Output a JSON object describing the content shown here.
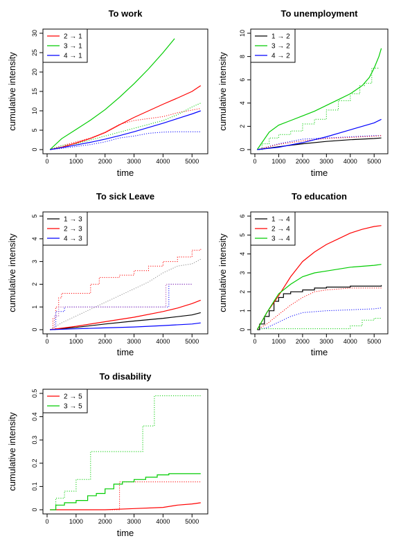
{
  "chart_data": [
    {
      "type": "line",
      "title": "To work",
      "xlabel": "time",
      "ylabel": "cumulative intensity",
      "xlim": [
        0,
        5400
      ],
      "ylim": [
        0,
        30
      ],
      "x_ticks": [
        0,
        1000,
        2000,
        3000,
        4000,
        5000
      ],
      "y_ticks": [
        0,
        5,
        10,
        15,
        20,
        25,
        30
      ],
      "legend_position": "top-left",
      "series": [
        {
          "name": "2 → 1",
          "color": "#ff0000",
          "style": "solid",
          "step": false,
          "x": [
            100,
            500,
            1000,
            1500,
            2000,
            2500,
            3000,
            3500,
            4000,
            4500,
            5000,
            5300
          ],
          "y": [
            0,
            0.6,
            1.7,
            2.9,
            4.4,
            6.4,
            8.3,
            10.0,
            11.7,
            13.3,
            15.0,
            16.5
          ]
        },
        {
          "name": "3 → 1",
          "color": "#00cc00",
          "style": "solid",
          "step": false,
          "x": [
            100,
            500,
            1000,
            1500,
            2000,
            2500,
            3000,
            3500,
            4000,
            4400
          ],
          "y": [
            0,
            2.8,
            5.2,
            7.6,
            10.3,
            13.5,
            17.0,
            20.8,
            25.0,
            28.6
          ]
        },
        {
          "name": "4 → 1",
          "color": "#0000ff",
          "style": "solid",
          "step": false,
          "x": [
            100,
            500,
            1000,
            1500,
            2000,
            2500,
            3000,
            3500,
            4000,
            4500,
            5000,
            5300
          ],
          "y": [
            0,
            0.5,
            1.2,
            1.9,
            2.7,
            3.6,
            4.6,
            5.7,
            6.8,
            8.0,
            9.2,
            10.0
          ]
        },
        {
          "name": "",
          "color": "#ff0000",
          "style": "dotted",
          "step": false,
          "x": [
            100,
            500,
            1000,
            1500,
            2000,
            2500,
            3000,
            3500,
            4000,
            4500,
            5000,
            5300
          ],
          "y": [
            0,
            1.0,
            2.0,
            3.0,
            4.5,
            6.5,
            7.5,
            8.0,
            8.5,
            9.5,
            10.2,
            10.6
          ]
        },
        {
          "name": "",
          "color": "#00cc00",
          "style": "dotted",
          "step": false,
          "x": [
            100,
            500,
            1000,
            1500,
            2000,
            2500,
            3000,
            3500,
            4000,
            4500,
            5000,
            5300
          ],
          "y": [
            0,
            1.0,
            1.5,
            2.5,
            3.5,
            4.5,
            5.5,
            6.5,
            7.5,
            9.0,
            11.0,
            12.0
          ]
        },
        {
          "name": "",
          "color": "#0000ff",
          "style": "dotted",
          "step": false,
          "x": [
            100,
            500,
            1000,
            1500,
            2000,
            2500,
            3000,
            3500,
            4000,
            4500,
            5000,
            5300
          ],
          "y": [
            0,
            0.3,
            0.8,
            1.3,
            2.0,
            3.0,
            3.5,
            4.2,
            4.5,
            4.6,
            4.6,
            4.6
          ]
        }
      ]
    },
    {
      "type": "line",
      "title": "To unemployment",
      "xlabel": "time",
      "ylabel": "cumulative intensity",
      "xlim": [
        0,
        5400
      ],
      "ylim": [
        0,
        10
      ],
      "x_ticks": [
        0,
        1000,
        2000,
        3000,
        4000,
        5000
      ],
      "y_ticks": [
        0,
        2,
        4,
        6,
        8,
        10
      ],
      "legend_position": "top-left",
      "series": [
        {
          "name": "1 → 2",
          "color": "#000000",
          "style": "solid",
          "step": false,
          "x": [
            100,
            1000,
            2000,
            3000,
            4000,
            5000,
            5300
          ],
          "y": [
            0,
            0.25,
            0.5,
            0.7,
            0.85,
            0.95,
            1.0
          ]
        },
        {
          "name": "3 → 2",
          "color": "#00cc00",
          "style": "solid",
          "step": false,
          "x": [
            100,
            300,
            600,
            1000,
            1500,
            2000,
            2500,
            3000,
            3500,
            4000,
            4500,
            4800,
            5000,
            5200,
            5300
          ],
          "y": [
            0,
            0.6,
            1.5,
            2.1,
            2.5,
            2.9,
            3.3,
            3.8,
            4.3,
            4.8,
            5.5,
            6.2,
            7.0,
            8.0,
            8.7
          ]
        },
        {
          "name": "4 → 2",
          "color": "#0000ff",
          "style": "solid",
          "step": false,
          "x": [
            100,
            1000,
            2000,
            3000,
            4000,
            5000,
            5300
          ],
          "y": [
            0,
            0.2,
            0.6,
            1.1,
            1.7,
            2.3,
            2.6
          ]
        },
        {
          "name": "",
          "color": "#00cc00",
          "style": "dotted",
          "step": true,
          "x": [
            100,
            300,
            600,
            1000,
            1500,
            2000,
            2500,
            3000,
            3500,
            4000,
            4400,
            4600,
            4900,
            5200
          ],
          "y": [
            0,
            0.5,
            1.0,
            1.3,
            1.6,
            2.2,
            2.6,
            3.4,
            4.2,
            4.8,
            5.5,
            5.7,
            7.0,
            7.0
          ]
        },
        {
          "name": "",
          "color": "#0000ff",
          "style": "dotted",
          "step": false,
          "x": [
            100,
            1000,
            2000,
            3000,
            4000,
            5000,
            5300
          ],
          "y": [
            0,
            0.5,
            0.9,
            1.0,
            1.1,
            1.2,
            1.2
          ]
        },
        {
          "name": "",
          "color": "#ff0000",
          "style": "dotted",
          "step": false,
          "x": [
            100,
            1000,
            2000,
            3000,
            4000,
            5000,
            5300
          ],
          "y": [
            0,
            0.45,
            0.75,
            0.95,
            1.05,
            1.15,
            1.2
          ]
        }
      ]
    },
    {
      "type": "line",
      "title": "To sick Leave",
      "xlabel": "time",
      "ylabel": "cumulative intensity",
      "xlim": [
        0,
        5400
      ],
      "ylim": [
        0,
        5
      ],
      "x_ticks": [
        0,
        1000,
        2000,
        3000,
        4000,
        5000
      ],
      "y_ticks": [
        0,
        1,
        2,
        3,
        4,
        5
      ],
      "legend_position": "top-left",
      "series": [
        {
          "name": "1 → 3",
          "color": "#000000",
          "style": "solid",
          "step": false,
          "x": [
            100,
            1000,
            2000,
            3000,
            4000,
            5000,
            5300
          ],
          "y": [
            0,
            0.1,
            0.25,
            0.38,
            0.5,
            0.65,
            0.75
          ]
        },
        {
          "name": "2 → 3",
          "color": "#ff0000",
          "style": "solid",
          "step": false,
          "x": [
            100,
            1000,
            2000,
            3000,
            4000,
            4500,
            5000,
            5300
          ],
          "y": [
            0,
            0.15,
            0.35,
            0.55,
            0.8,
            0.95,
            1.15,
            1.3
          ]
        },
        {
          "name": "4 → 3",
          "color": "#0000ff",
          "style": "solid",
          "step": false,
          "x": [
            100,
            1000,
            2000,
            3000,
            4000,
            5000,
            5300
          ],
          "y": [
            0,
            0.04,
            0.08,
            0.12,
            0.18,
            0.25,
            0.3
          ]
        },
        {
          "name": "",
          "color": "#ff0000",
          "style": "dotted",
          "step": true,
          "x": [
            100,
            200,
            300,
            400,
            500,
            1500,
            1800,
            2500,
            3000,
            3500,
            4000,
            4500,
            5000,
            5300
          ],
          "y": [
            0,
            0.5,
            1.0,
            1.4,
            1.6,
            2.0,
            2.3,
            2.4,
            2.6,
            2.8,
            3.0,
            3.2,
            3.5,
            3.6
          ]
        },
        {
          "name": "",
          "color": "#888888",
          "style": "dotted",
          "step": false,
          "x": [
            100,
            500,
            1000,
            1500,
            2000,
            2500,
            3000,
            3500,
            4000,
            4500,
            5000,
            5300
          ],
          "y": [
            0,
            0.3,
            0.6,
            0.9,
            1.2,
            1.5,
            1.8,
            2.1,
            2.5,
            2.8,
            2.9,
            3.1
          ]
        },
        {
          "name": "",
          "color": "#0000ff",
          "style": "dotted",
          "step": true,
          "x": [
            100,
            300,
            600,
            4000,
            4200,
            5000
          ],
          "y": [
            0,
            0.8,
            1.0,
            1.0,
            2.0,
            2.0
          ]
        },
        {
          "name": "",
          "color": "#aa44aa",
          "style": "dotted",
          "step": true,
          "x": [
            100,
            250,
            400,
            4000,
            4100,
            5000
          ],
          "y": [
            0,
            0.6,
            1.0,
            1.0,
            2.0,
            2.0
          ]
        }
      ]
    },
    {
      "type": "line",
      "title": "To education",
      "xlabel": "time",
      "ylabel": "cumulative intensity",
      "xlim": [
        0,
        5400
      ],
      "ylim": [
        0,
        6
      ],
      "x_ticks": [
        0,
        1000,
        2000,
        3000,
        4000,
        5000
      ],
      "y_ticks": [
        0,
        1,
        2,
        3,
        4,
        5,
        6
      ],
      "legend_position": "top-left",
      "series": [
        {
          "name": "1 → 4",
          "color": "#000000",
          "style": "solid",
          "step": true,
          "x": [
            100,
            200,
            400,
            600,
            800,
            1000,
            1200,
            1500,
            2000,
            2500,
            3000,
            4000,
            5300
          ],
          "y": [
            0,
            0.3,
            0.7,
            1.0,
            1.5,
            1.7,
            1.9,
            2.0,
            2.1,
            2.2,
            2.25,
            2.3,
            2.35
          ]
        },
        {
          "name": "2 → 4",
          "color": "#ff0000",
          "style": "solid",
          "step": false,
          "x": [
            100,
            500,
            1000,
            1500,
            2000,
            2500,
            3000,
            3500,
            4000,
            4500,
            5000,
            5300
          ],
          "y": [
            0,
            0.9,
            1.8,
            2.8,
            3.6,
            4.1,
            4.5,
            4.8,
            5.1,
            5.3,
            5.45,
            5.5
          ]
        },
        {
          "name": "3 → 4",
          "color": "#00cc00",
          "style": "solid",
          "step": false,
          "x": [
            100,
            500,
            1000,
            1500,
            2000,
            2500,
            3000,
            4000,
            5000,
            5300
          ],
          "y": [
            0,
            0.9,
            1.9,
            2.4,
            2.8,
            3.0,
            3.1,
            3.3,
            3.4,
            3.45
          ]
        },
        {
          "name": "",
          "color": "#ff0000",
          "style": "dotted",
          "step": false,
          "x": [
            100,
            500,
            1000,
            1500,
            2000,
            2500,
            3000,
            4000,
            5000,
            5300
          ],
          "y": [
            0,
            0.3,
            0.8,
            1.3,
            1.7,
            2.0,
            2.1,
            2.2,
            2.2,
            2.2
          ]
        },
        {
          "name": "",
          "color": "#0000ff",
          "style": "dotted",
          "step": false,
          "x": [
            100,
            500,
            1000,
            1500,
            2000,
            3000,
            4000,
            5000,
            5300
          ],
          "y": [
            0,
            0.1,
            0.4,
            0.7,
            0.9,
            1.0,
            1.05,
            1.1,
            1.15
          ]
        },
        {
          "name": "",
          "color": "#00cc00",
          "style": "dotted",
          "step": true,
          "x": [
            100,
            3500,
            4000,
            4500,
            5000,
            5300
          ],
          "y": [
            0.05,
            0.05,
            0.2,
            0.5,
            0.6,
            0.6
          ]
        }
      ]
    },
    {
      "type": "line",
      "title": "To disability",
      "xlabel": "time",
      "ylabel": "cumulative intensity",
      "xlim": [
        0,
        5400
      ],
      "ylim": [
        0,
        0.5
      ],
      "x_ticks": [
        0,
        1000,
        2000,
        3000,
        4000,
        5000
      ],
      "y_ticks": [
        0.0,
        0.1,
        0.2,
        0.3,
        0.4,
        0.5
      ],
      "legend_position": "top-left",
      "series": [
        {
          "name": "2 → 5",
          "color": "#ff0000",
          "style": "solid",
          "step": false,
          "x": [
            100,
            1000,
            2000,
            3000,
            4000,
            4500,
            5000,
            5300
          ],
          "y": [
            0,
            0.0,
            0.0,
            0.005,
            0.01,
            0.02,
            0.025,
            0.03
          ]
        },
        {
          "name": "3 → 5",
          "color": "#00cc00",
          "style": "solid",
          "step": true,
          "x": [
            100,
            300,
            600,
            1000,
            1400,
            1700,
            2000,
            2300,
            2600,
            3000,
            3400,
            3800,
            4200,
            5300
          ],
          "y": [
            0,
            0.02,
            0.03,
            0.04,
            0.06,
            0.07,
            0.09,
            0.11,
            0.12,
            0.13,
            0.14,
            0.15,
            0.155,
            0.155
          ]
        },
        {
          "name": "",
          "color": "#00cc00",
          "style": "dotted",
          "step": true,
          "x": [
            100,
            300,
            600,
            1000,
            1300,
            1500,
            2400,
            3300,
            3700,
            5300
          ],
          "y": [
            0,
            0.05,
            0.08,
            0.13,
            0.13,
            0.25,
            0.25,
            0.36,
            0.49,
            0.49
          ]
        },
        {
          "name": "",
          "color": "#ff0000",
          "style": "dotted",
          "step": true,
          "x": [
            100,
            2400,
            2500,
            3500,
            5300
          ],
          "y": [
            0,
            0.0,
            0.12,
            0.12,
            0.12
          ]
        }
      ]
    }
  ]
}
